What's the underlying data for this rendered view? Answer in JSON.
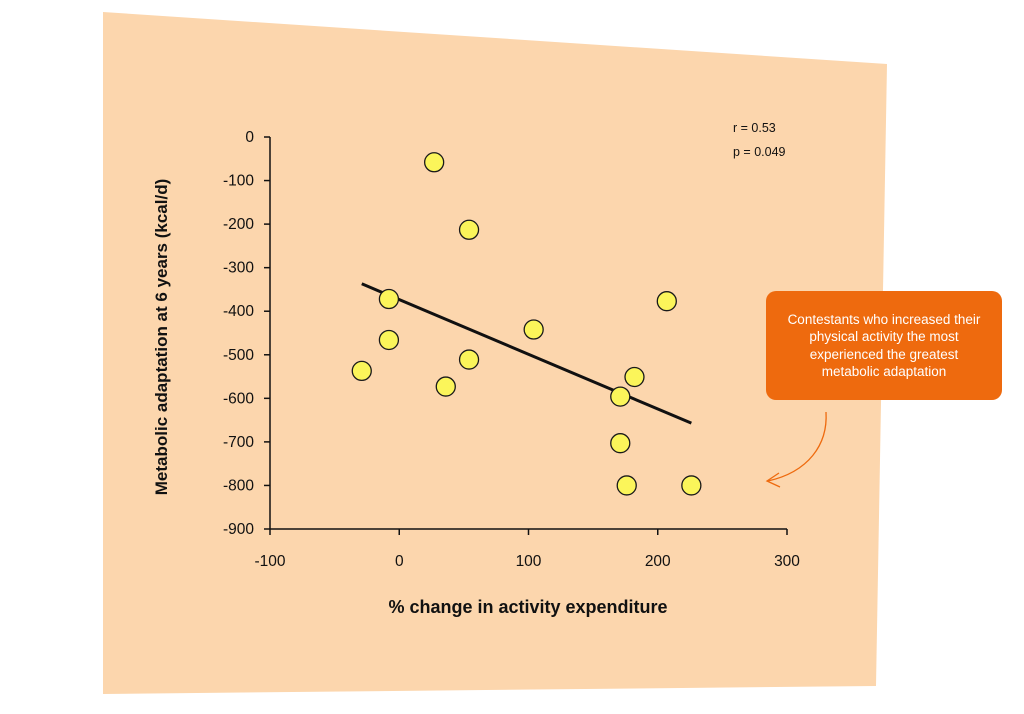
{
  "chart_data": {
    "type": "scatter",
    "title": "",
    "xlabel": "% change in activity expenditure",
    "ylabel": "Metabolic adaptation at 6 years (kcal/d)",
    "xlim": [
      -100,
      300
    ],
    "ylim": [
      -900,
      0
    ],
    "xticks": [
      "-100",
      "0",
      "100",
      "200",
      "300"
    ],
    "yticks": [
      "0",
      "-100",
      "-200",
      "-300",
      "-400",
      "-500",
      "-600",
      "-700",
      "-800",
      "-900"
    ],
    "grid": false,
    "points": [
      {
        "x": 27,
        "y": -58
      },
      {
        "x": 54,
        "y": -213
      },
      {
        "x": 207,
        "y": -377
      },
      {
        "x": -8,
        "y": -372
      },
      {
        "x": 104,
        "y": -442
      },
      {
        "x": -8,
        "y": -466
      },
      {
        "x": 54,
        "y": -511
      },
      {
        "x": -29,
        "y": -537
      },
      {
        "x": 36,
        "y": -573
      },
      {
        "x": 182,
        "y": -551
      },
      {
        "x": 171,
        "y": -596
      },
      {
        "x": 171,
        "y": -703
      },
      {
        "x": 176,
        "y": -800
      },
      {
        "x": 226,
        "y": -800
      }
    ],
    "trendline": {
      "x": [
        -29,
        226
      ],
      "y": [
        -337,
        -657
      ]
    },
    "stats": {
      "r": "r = 0.53",
      "p": "p = 0.049"
    },
    "annotation": "Contestants who increased their physical activity the most experienced the greatest metabolic adaptation",
    "colors": {
      "background": "#fcd6ad",
      "point_fill": "#fbf55a",
      "point_stroke": "#1a1a1a",
      "trendline": "#111111",
      "callout": "#ee6a0e",
      "arrow": "#ee6a0e"
    }
  }
}
